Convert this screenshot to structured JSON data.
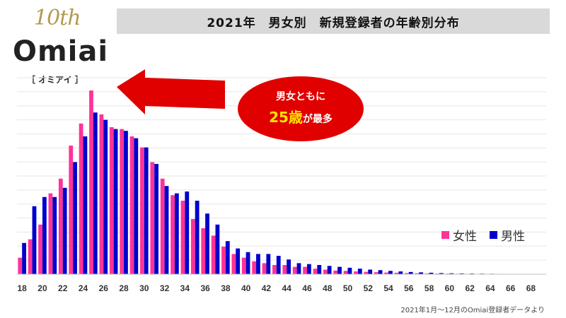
{
  "logo": {
    "anniversary": "10th",
    "brand": "Omiai",
    "sub": "［ オミアイ ］"
  },
  "title": "2021年　男女別　新規登録者の年齢別分布",
  "callout": {
    "line1": "男女ともに",
    "age": "25歳",
    "tail": "が最多"
  },
  "legend": {
    "female": "女性",
    "male": "男性"
  },
  "source": "2021年1月～12月のOmiai登録者データより",
  "colors": {
    "female": "#ff3399",
    "male": "#0000cc",
    "callout": "#e00000",
    "arrow": "#e00000",
    "highlight": "#ffe300"
  },
  "chart_data": {
    "type": "bar",
    "title": "2021年　男女別　新規登録者の年齢別分布",
    "xlabel": "",
    "ylabel": "",
    "grid": true,
    "legend_position": "right",
    "categories": [
      18,
      19,
      20,
      21,
      22,
      23,
      24,
      25,
      26,
      27,
      28,
      29,
      30,
      31,
      32,
      33,
      34,
      35,
      36,
      37,
      38,
      39,
      40,
      41,
      42,
      43,
      44,
      45,
      46,
      47,
      48,
      49,
      50,
      51,
      52,
      53,
      54,
      55,
      56,
      57,
      58,
      59,
      60,
      61,
      62,
      63,
      64,
      65,
      66,
      67,
      68,
      69
    ],
    "tick_labels": [
      "18",
      "20",
      "22",
      "24",
      "26",
      "28",
      "30",
      "32",
      "34",
      "36",
      "38",
      "40",
      "42",
      "44",
      "46",
      "48",
      "50",
      "52",
      "54",
      "56",
      "58",
      "60",
      "62",
      "64",
      "66",
      "68"
    ],
    "ylim": [
      0,
      100
    ],
    "series": [
      {
        "name": "女性",
        "values": [
          9,
          19,
          27,
          44,
          52,
          70,
          82,
          100,
          87,
          80,
          79,
          75,
          69,
          61,
          52,
          43,
          40,
          30,
          25,
          21,
          15,
          11,
          9,
          7,
          6,
          5,
          5,
          4,
          4,
          3,
          2.5,
          2,
          1.8,
          1.5,
          1.3,
          1.1,
          0.9,
          0.8,
          0.6,
          0.5,
          0.4,
          0.35,
          0.3,
          0.25,
          0.2,
          0.18,
          0.15,
          0.12,
          0.1,
          0.08,
          0.06,
          0.05
        ]
      },
      {
        "name": "男性",
        "values": [
          17,
          37,
          42,
          42,
          47,
          61,
          75,
          88,
          84,
          79,
          78,
          74,
          69,
          60,
          48,
          44,
          45,
          40,
          33,
          27,
          18,
          14,
          12,
          11,
          11,
          10,
          8,
          6,
          5.5,
          5,
          4.5,
          4,
          3.5,
          3,
          2.5,
          2.2,
          1.8,
          1.5,
          1.2,
          1,
          0.8,
          0.6,
          0.5,
          0.4,
          0.35,
          0.3,
          0.25,
          0.2,
          0.15,
          0.12,
          0.1,
          0.08
        ]
      }
    ]
  }
}
